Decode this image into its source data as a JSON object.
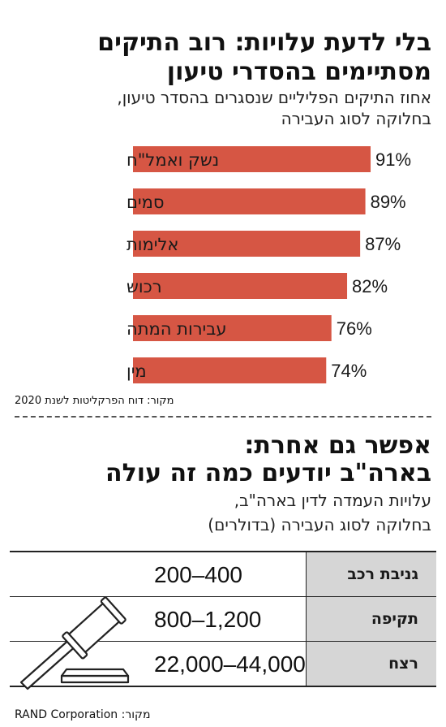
{
  "section1": {
    "title_line1": "בלי לדעת עלויות: רוב התיקים",
    "title_line2": "מסתיימים בהסדרי טיעון",
    "subtitle_line1": "אחוז התיקים הפליליים שנסגרים בהסדר טיעון,",
    "subtitle_line2": "בחלוקה לסוג העבירה",
    "source": "מקור: דוח הפרקליטות לשנת 2020"
  },
  "chart_data": {
    "type": "bar",
    "orientation": "horizontal",
    "categories": [
      "נשק ואמל\"ח",
      "סמים",
      "אלימות",
      "רכוש",
      "עבירות המתה",
      "מין"
    ],
    "values": [
      91,
      89,
      87,
      82,
      76,
      74
    ],
    "value_labels": [
      "91%",
      "89%",
      "87%",
      "82%",
      "76%",
      "74%"
    ],
    "unit": "%",
    "bar_color": "#d65644",
    "xlim": [
      0,
      100
    ],
    "grid": false
  },
  "section2": {
    "title_line1": "אפשר גם אחרת:",
    "title_line2": "בארה\"ב יודעים כמה זה עולה",
    "subtitle_line1": "עלויות העמדה לדין בארה\"ב,",
    "subtitle_line2": "בחלוקה לסוג העבירה (בדולרים)",
    "table": [
      {
        "label": "גניבת רכב",
        "value": "200–400"
      },
      {
        "label": "תקיפה",
        "value": "800–1,200"
      },
      {
        "label": "רצח",
        "value": "22,000–44,000"
      }
    ],
    "source": "מקור: RAND Corporation",
    "icon": "gavel-icon"
  }
}
